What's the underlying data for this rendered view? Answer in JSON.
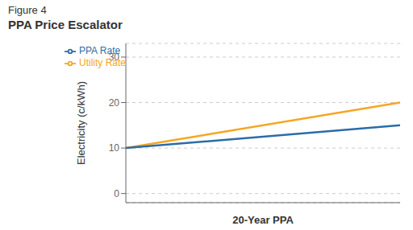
{
  "chart_data": {
    "type": "line",
    "subtitle": "Figure 4",
    "title": "PPA Price Escalator",
    "xlabel": "20-Year PPA",
    "ylabel": "Electricity (c/kWh)",
    "x": [
      0,
      20
    ],
    "series": [
      {
        "name": "Utility Rate",
        "color": "#F5A623",
        "values": [
          10,
          20
        ]
      },
      {
        "name": "PPA Rate",
        "color": "#2B6CA8",
        "values": [
          10,
          15
        ]
      }
    ],
    "xlim": [
      0,
      20
    ],
    "ylim": [
      -2,
      33
    ],
    "yticks": [
      0,
      10,
      20,
      30
    ],
    "grid": true,
    "legend": "upper left",
    "tick_labels": "y"
  }
}
